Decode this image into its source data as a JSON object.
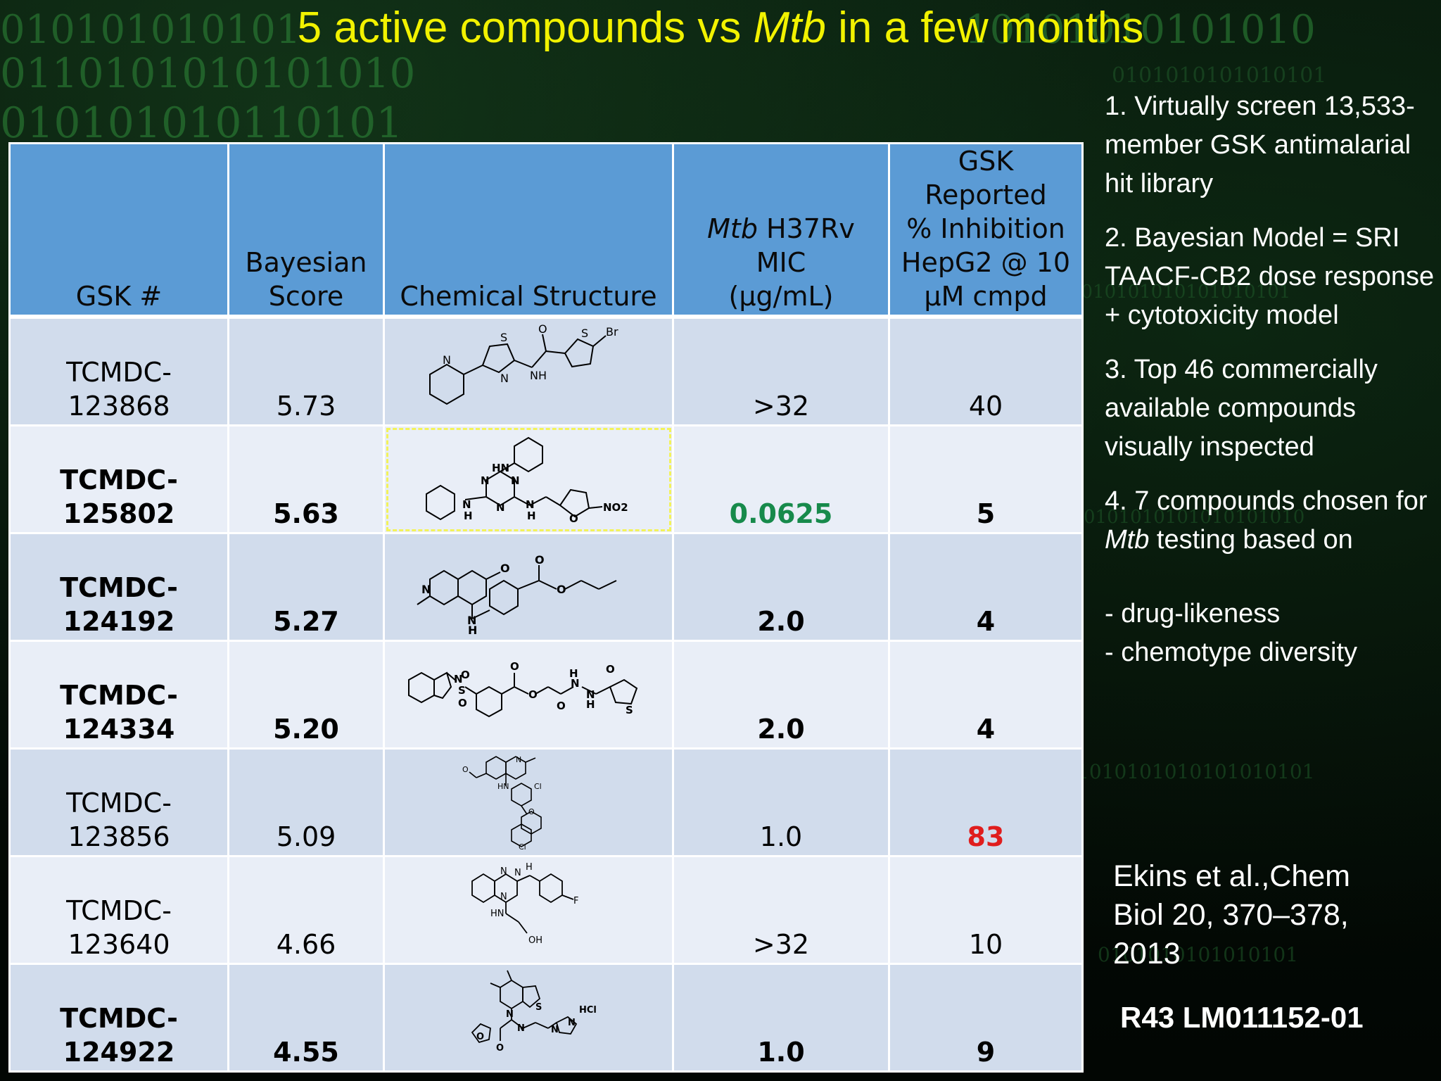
{
  "title": {
    "pre": "5 active compounds vs ",
    "italic": "Mtb",
    "post": " in a few months"
  },
  "table": {
    "headers": {
      "gsk": "GSK #",
      "bayes_1": "Bayesian",
      "bayes_2": "Score",
      "structure": "Chemical Structure",
      "mic_italic": "Mtb",
      "mic_1": " H37Rv",
      "mic_2": "MIC",
      "mic_3": "(μg/mL)",
      "tox_1": "GSK",
      "tox_2": "Reported",
      "tox_3": "% Inhibition",
      "tox_4": "HepG2 @ 10",
      "tox_5": "μM cmpd"
    },
    "rows": [
      {
        "id_1": "TCMDC-",
        "id_2": "123868",
        "score": "5.73",
        "mic": ">32",
        "inhibition": "40",
        "atom_labels": [
          "S",
          "O",
          "S",
          "Br",
          "N",
          "NH",
          "N"
        ]
      },
      {
        "id_1": "TCMDC-",
        "id_2": "125802",
        "score": "5.63",
        "mic": "0.0625",
        "inhibition": "5",
        "atom_labels": [
          "HN",
          "N",
          "N",
          "N",
          "N",
          "H",
          "N",
          "H",
          "O",
          "NO2"
        ]
      },
      {
        "id_1": "TCMDC-",
        "id_2": "124192",
        "score": "5.27",
        "mic": "2.0",
        "inhibition": "4",
        "atom_labels": [
          "O",
          "N",
          "O",
          "O",
          "N",
          "H"
        ]
      },
      {
        "id_1": "TCMDC-",
        "id_2": "124334",
        "score": "5.20",
        "mic": "2.0",
        "inhibition": "4",
        "atom_labels": [
          "N",
          "S",
          "O",
          "O",
          "O",
          "O",
          "H",
          "N",
          "N",
          "H",
          "O",
          "O",
          "S"
        ]
      },
      {
        "id_1": "TCMDC-",
        "id_2": "123856",
        "score": "5.09",
        "mic": "1.0",
        "inhibition": "83",
        "atom_labels": [
          "N",
          "O",
          "HN",
          "Cl",
          "O",
          "Cl"
        ]
      },
      {
        "id_1": "TCMDC-",
        "id_2": "123640",
        "score": "4.66",
        "mic": ">32",
        "inhibition": "10",
        "atom_labels": [
          "N",
          "H",
          "N",
          "N",
          "F",
          "HN",
          "OH"
        ]
      },
      {
        "id_1": "TCMDC-",
        "id_2": "124922",
        "score": "4.55",
        "mic": "1.0",
        "inhibition": "9",
        "atom_labels": [
          "HCl",
          "N",
          "S",
          "O",
          "N",
          "N",
          "O",
          "N"
        ]
      }
    ]
  },
  "sidebar": {
    "p1": "1. Virtually screen 13,533-member GSK antimalarial hit library",
    "p2": "2. Bayesian Model = SRI TAACF-CB2 dose response + cytotoxicity model",
    "p3": "3. Top 46 commercially available compounds visually inspected",
    "p4_pre": "4. 7 compounds chosen for ",
    "p4_italic": "Mtb",
    "p4_post": " testing based on",
    "p5a": "- drug-likeness",
    "p5b": "- chemotype diversity"
  },
  "citation": "Ekins et al.,Chem Biol 20, 370–378, 2013",
  "grant": "R43 LM011152-01",
  "colors": {
    "title": "#f2f200",
    "header": "#5b9bd5",
    "row_odd": "#d1dcec",
    "row_even": "#e9eef7",
    "mic_active": "#178a4b",
    "tox_high": "#e01d1d"
  }
}
